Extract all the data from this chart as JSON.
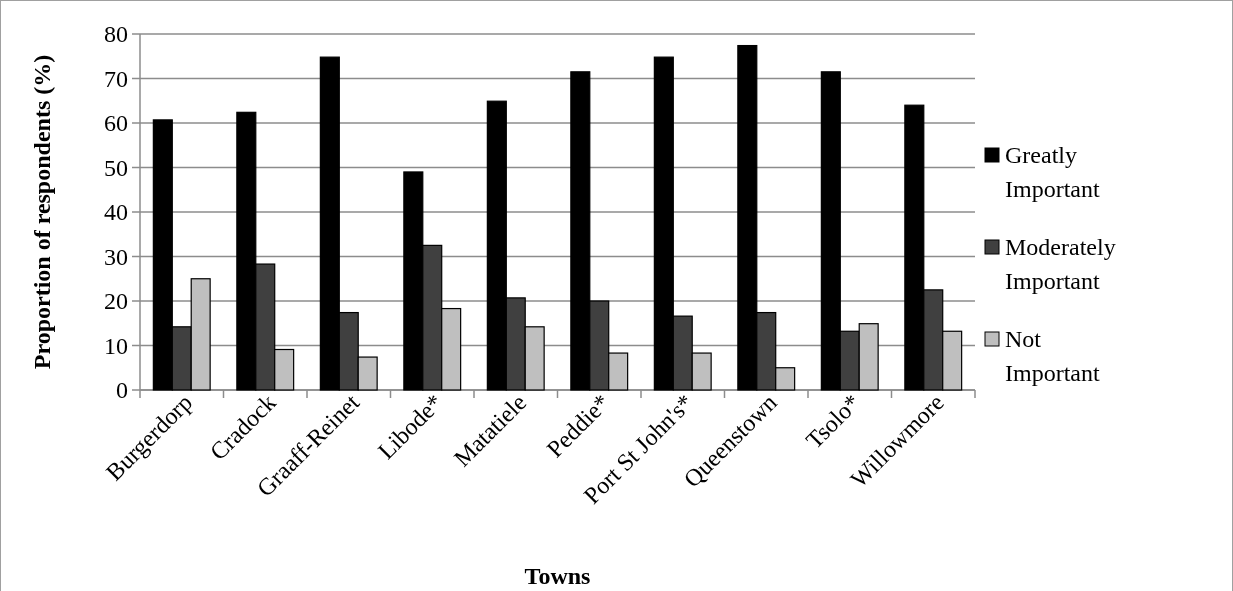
{
  "chart_data": {
    "type": "bar",
    "xlabel": "Towns",
    "ylabel": "Proportion of respondents (%)",
    "categories": [
      "Burgerdorp",
      "Cradock",
      "Graaff-Reinet",
      "Libode*",
      "Matatiele",
      "Peddie*",
      "Port St John's*",
      "Queenstown",
      "Tsolo*",
      "Willowmore"
    ],
    "series": [
      {
        "name": "Greatly Important",
        "color": "#000000",
        "values": [
          60.7,
          62.4,
          74.8,
          49.0,
          64.9,
          71.5,
          74.8,
          77.4,
          71.5,
          64.0
        ]
      },
      {
        "name": "Moderately Important",
        "color": "#404040",
        "values": [
          14.2,
          28.3,
          17.4,
          32.5,
          20.7,
          20.0,
          16.6,
          17.4,
          13.2,
          22.5
        ]
      },
      {
        "name": "Not Important",
        "color": "#bfbfbf",
        "values": [
          25.0,
          9.1,
          7.4,
          18.3,
          14.2,
          8.3,
          8.3,
          5.0,
          14.9,
          13.2
        ]
      }
    ],
    "ylim": [
      0,
      80
    ],
    "yticks": [
      0,
      10,
      20,
      30,
      40,
      50,
      60,
      70,
      80
    ],
    "grid": "y",
    "legend": "right"
  }
}
